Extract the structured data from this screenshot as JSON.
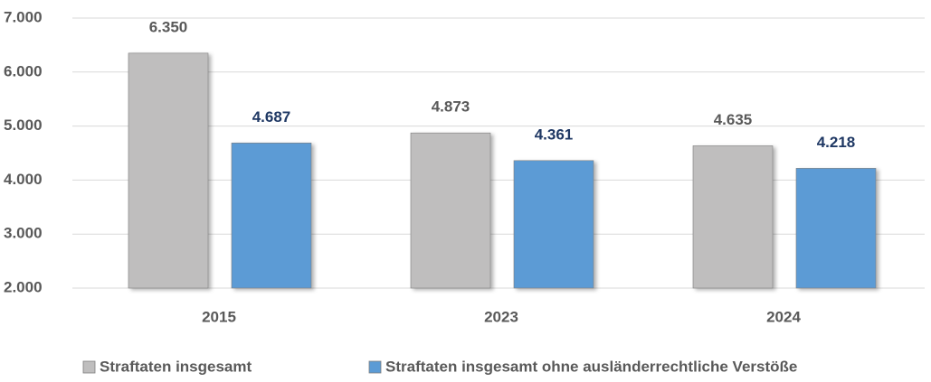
{
  "chart_data": {
    "type": "bar",
    "categories": [
      "2015",
      "2023",
      "2024"
    ],
    "series": [
      {
        "name": "Straftaten insgesamt",
        "color": "#bfbebe",
        "label_color": "#595959",
        "values": [
          6350,
          4873,
          4635
        ],
        "value_labels": [
          "6.350",
          "4.873",
          "4.635"
        ]
      },
      {
        "name": "Straftaten insgesamt ohne ausländerrechtliche Verstöße",
        "color": "#5b9bd5",
        "label_color": "#1f3864",
        "values": [
          4687,
          4361,
          4218
        ],
        "value_labels": [
          "4.687",
          "4.361",
          "4.218"
        ]
      }
    ],
    "ylim": [
      2000,
      7000
    ],
    "yticks": [
      {
        "value": 2000,
        "label": "2.000"
      },
      {
        "value": 3000,
        "label": "3.000"
      },
      {
        "value": 4000,
        "label": "4.000"
      },
      {
        "value": 5000,
        "label": "5.000"
      },
      {
        "value": 6000,
        "label": "6.000"
      },
      {
        "value": 7000,
        "label": "7.000"
      }
    ],
    "grid": true,
    "legend": "bottom"
  }
}
